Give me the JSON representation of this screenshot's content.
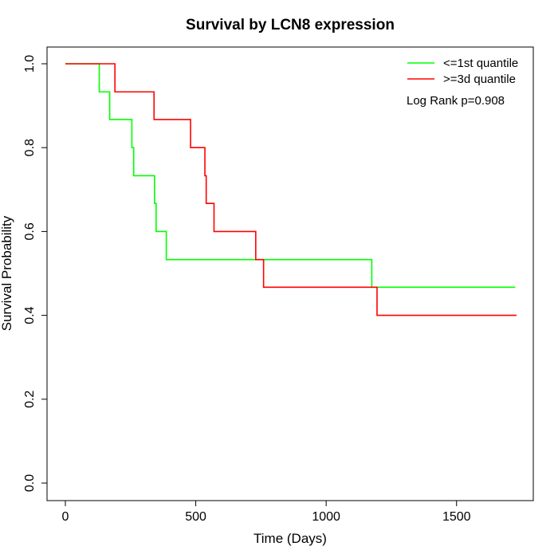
{
  "chart_data": {
    "type": "line",
    "subtype": "kaplan-meier step",
    "title": "Survival by LCN8 expression",
    "xlabel": "Time (Days)",
    "ylabel": "Survival Probability",
    "xlim": [
      0,
      1730
    ],
    "ylim": [
      0,
      1
    ],
    "x_ticks": [
      0,
      500,
      1000,
      1500
    ],
    "y_ticks": [
      0.0,
      0.2,
      0.4,
      0.6,
      0.8,
      1.0
    ],
    "x_tick_labels": [
      "0",
      "500",
      "1000",
      "1500"
    ],
    "y_tick_labels": [
      "0.0",
      "0.2",
      "0.4",
      "0.6",
      "0.8",
      "1.0"
    ],
    "grid": false,
    "legend_position": "top-right",
    "annotation": "Log Rank p=0.908",
    "series": [
      {
        "name": "<=1st quantile",
        "color": "#00ff00",
        "x": [
          0,
          130,
          170,
          255,
          262,
          342,
          348,
          387,
          1175,
          1725
        ],
        "y": [
          1.0,
          0.933,
          0.867,
          0.8,
          0.733,
          0.667,
          0.6,
          0.533,
          0.467,
          0.467
        ]
      },
      {
        "name": ">=3d quantile",
        "color": "#ff0000",
        "x": [
          0,
          190,
          340,
          480,
          535,
          540,
          570,
          730,
          760,
          1195,
          1730
        ],
        "y": [
          1.0,
          0.933,
          0.867,
          0.8,
          0.733,
          0.667,
          0.6,
          0.533,
          0.467,
          0.4,
          0.4
        ]
      }
    ]
  }
}
